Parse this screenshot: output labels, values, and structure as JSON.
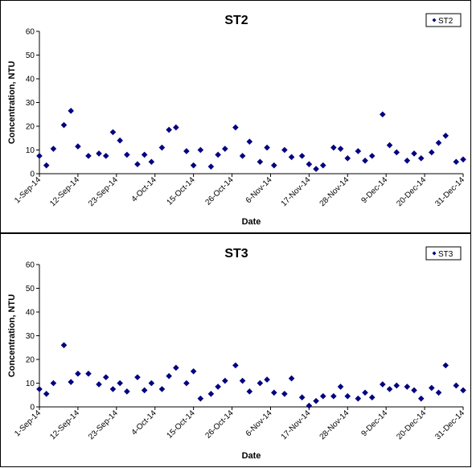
{
  "chart_data": [
    {
      "type": "scatter",
      "title": "ST2",
      "xlabel": "Date",
      "ylabel": "Concentration, NTU",
      "ylim": [
        0,
        60
      ],
      "yticks": [
        "0",
        "10",
        "20",
        "30",
        "40",
        "50",
        "60"
      ],
      "xlim": [
        "2014-09-01",
        "2014-12-31"
      ],
      "xticks": [
        "1-Sep-14",
        "12-Sep-14",
        "23-Sep-14",
        "4-Oct-14",
        "15-Oct-14",
        "26-Oct-14",
        "6-Nov-14",
        "17-Nov-14",
        "28-Nov-14",
        "9-Dec-14",
        "20-Dec-14",
        "31-Dec-14"
      ],
      "grid": false,
      "legend": "top-right",
      "color": "#000080",
      "series": [
        {
          "name": "ST2",
          "points": [
            [
              "2014-09-01",
              7.5
            ],
            [
              "2014-09-03",
              3.5
            ],
            [
              "2014-09-05",
              10.5
            ],
            [
              "2014-09-08",
              20.5
            ],
            [
              "2014-09-10",
              26.5
            ],
            [
              "2014-09-12",
              11.5
            ],
            [
              "2014-09-15",
              7.5
            ],
            [
              "2014-09-18",
              8.5
            ],
            [
              "2014-09-20",
              7.5
            ],
            [
              "2014-09-22",
              17.5
            ],
            [
              "2014-09-24",
              14.0
            ],
            [
              "2014-09-26",
              8.0
            ],
            [
              "2014-09-29",
              4.0
            ],
            [
              "2014-10-01",
              8.0
            ],
            [
              "2014-10-03",
              5.0
            ],
            [
              "2014-10-06",
              11.0
            ],
            [
              "2014-10-08",
              18.5
            ],
            [
              "2014-10-10",
              19.5
            ],
            [
              "2014-10-13",
              9.5
            ],
            [
              "2014-10-15",
              3.5
            ],
            [
              "2014-10-17",
              10.0
            ],
            [
              "2014-10-20",
              3.0
            ],
            [
              "2014-10-22",
              8.0
            ],
            [
              "2014-10-24",
              10.5
            ],
            [
              "2014-10-27",
              19.5
            ],
            [
              "2014-10-29",
              7.5
            ],
            [
              "2014-10-31",
              13.5
            ],
            [
              "2014-11-03",
              5.0
            ],
            [
              "2014-11-05",
              11.0
            ],
            [
              "2014-11-07",
              3.5
            ],
            [
              "2014-11-10",
              10.0
            ],
            [
              "2014-11-12",
              7.0
            ],
            [
              "2014-11-15",
              7.5
            ],
            [
              "2014-11-17",
              4.0
            ],
            [
              "2014-11-19",
              2.0
            ],
            [
              "2014-11-21",
              3.5
            ],
            [
              "2014-11-24",
              11.0
            ],
            [
              "2014-11-26",
              10.5
            ],
            [
              "2014-11-28",
              6.5
            ],
            [
              "2014-12-01",
              9.5
            ],
            [
              "2014-12-03",
              5.5
            ],
            [
              "2014-12-05",
              7.5
            ],
            [
              "2014-12-08",
              25.0
            ],
            [
              "2014-12-10",
              12.0
            ],
            [
              "2014-12-12",
              9.0
            ],
            [
              "2014-12-15",
              5.5
            ],
            [
              "2014-12-17",
              8.5
            ],
            [
              "2014-12-19",
              6.5
            ],
            [
              "2014-12-22",
              9.0
            ],
            [
              "2014-12-24",
              13.0
            ],
            [
              "2014-12-26",
              16.0
            ],
            [
              "2014-12-29",
              5.0
            ],
            [
              "2014-12-31",
              6.0
            ]
          ]
        }
      ]
    },
    {
      "type": "scatter",
      "title": "ST3",
      "xlabel": "Date",
      "ylabel": "Concentration, NTU",
      "ylim": [
        0,
        60
      ],
      "yticks": [
        "0",
        "10",
        "20",
        "30",
        "40",
        "50",
        "60"
      ],
      "xlim": [
        "2014-09-01",
        "2014-12-31"
      ],
      "xticks": [
        "1-Sep-14",
        "12-Sep-14",
        "23-Sep-14",
        "4-Oct-14",
        "15-Oct-14",
        "26-Oct-14",
        "6-Nov-14",
        "17-Nov-14",
        "28-Nov-14",
        "9-Dec-14",
        "20-Dec-14",
        "31-Dec-14"
      ],
      "grid": false,
      "legend": "top-right",
      "color": "#000080",
      "series": [
        {
          "name": "ST3",
          "points": [
            [
              "2014-09-01",
              7.5
            ],
            [
              "2014-09-03",
              5.5
            ],
            [
              "2014-09-05",
              10.0
            ],
            [
              "2014-09-08",
              26.0
            ],
            [
              "2014-09-10",
              10.5
            ],
            [
              "2014-09-12",
              14.0
            ],
            [
              "2014-09-15",
              14.0
            ],
            [
              "2014-09-18",
              9.5
            ],
            [
              "2014-09-20",
              12.5
            ],
            [
              "2014-09-22",
              7.5
            ],
            [
              "2014-09-24",
              10.0
            ],
            [
              "2014-09-26",
              6.5
            ],
            [
              "2014-09-29",
              12.5
            ],
            [
              "2014-10-01",
              7.0
            ],
            [
              "2014-10-03",
              10.0
            ],
            [
              "2014-10-06",
              7.5
            ],
            [
              "2014-10-08",
              13.0
            ],
            [
              "2014-10-10",
              16.5
            ],
            [
              "2014-10-13",
              10.0
            ],
            [
              "2014-10-15",
              15.0
            ],
            [
              "2014-10-17",
              3.5
            ],
            [
              "2014-10-20",
              5.5
            ],
            [
              "2014-10-22",
              8.5
            ],
            [
              "2014-10-24",
              11.0
            ],
            [
              "2014-10-27",
              17.5
            ],
            [
              "2014-10-29",
              11.0
            ],
            [
              "2014-10-31",
              6.5
            ],
            [
              "2014-11-03",
              10.0
            ],
            [
              "2014-11-05",
              11.5
            ],
            [
              "2014-11-07",
              6.0
            ],
            [
              "2014-11-10",
              5.5
            ],
            [
              "2014-11-12",
              12.0
            ],
            [
              "2014-11-15",
              4.0
            ],
            [
              "2014-11-17",
              0.5
            ],
            [
              "2014-11-19",
              2.5
            ],
            [
              "2014-11-21",
              4.5
            ],
            [
              "2014-11-24",
              4.5
            ],
            [
              "2014-11-26",
              8.5
            ],
            [
              "2014-11-28",
              4.5
            ],
            [
              "2014-12-01",
              3.5
            ],
            [
              "2014-12-03",
              6.0
            ],
            [
              "2014-12-05",
              4.0
            ],
            [
              "2014-12-08",
              9.5
            ],
            [
              "2014-12-10",
              7.5
            ],
            [
              "2014-12-12",
              9.0
            ],
            [
              "2014-12-15",
              8.5
            ],
            [
              "2014-12-17",
              7.0
            ],
            [
              "2014-12-19",
              3.5
            ],
            [
              "2014-12-22",
              8.0
            ],
            [
              "2014-12-24",
              6.0
            ],
            [
              "2014-12-26",
              17.5
            ],
            [
              "2014-12-29",
              9.0
            ],
            [
              "2014-12-31",
              7.0
            ]
          ]
        }
      ]
    }
  ]
}
